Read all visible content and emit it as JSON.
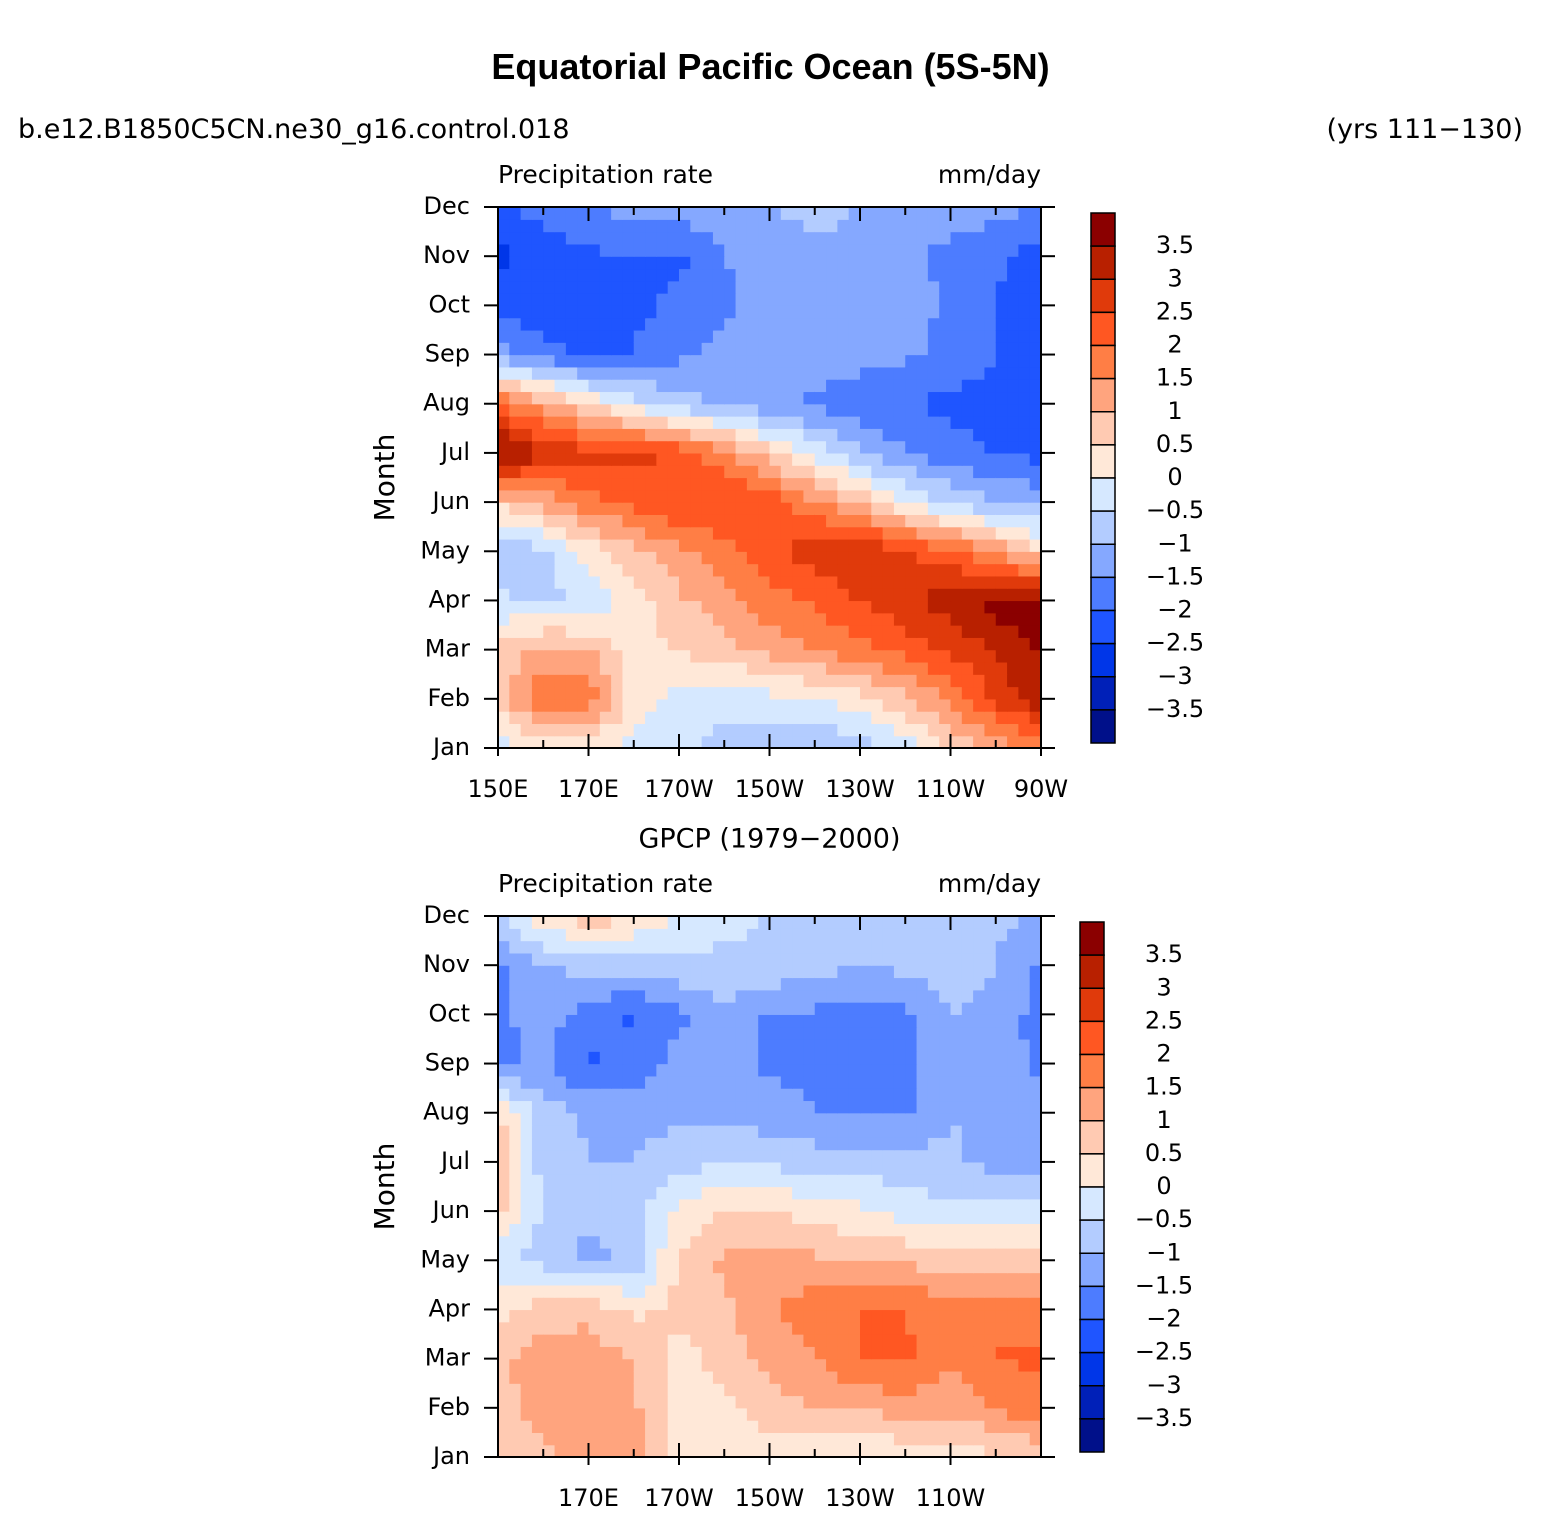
{
  "header": {
    "title": "Equatorial Pacific Ocean (5S-5N)",
    "case_name": "b.e12.B1850C5CN.ne30_g16.control.018",
    "years": "(yrs 111−130)"
  },
  "colorbar": {
    "levels": [
      -3.5,
      -3,
      -2.5,
      -2,
      -1.5,
      -1,
      -0.5,
      0,
      0.5,
      1,
      1.5,
      2,
      2.5,
      3,
      3.5
    ],
    "labels": [
      "3.5",
      "3",
      "2.5",
      "2",
      "1.5",
      "1",
      "0.5",
      "0",
      "−0.5",
      "−1",
      "−1.5",
      "−2",
      "−2.5",
      "−3",
      "−3.5"
    ],
    "colors": [
      "#8b0000",
      "#b82000",
      "#e03a0b",
      "#ff5722",
      "#ff7e45",
      "#ffa47e",
      "#ffcab2",
      "#ffe8d8",
      "#d6e8ff",
      "#b3ccff",
      "#85a8ff",
      "#4d7cff",
      "#1f55ff",
      "#0036e8",
      "#0020b8",
      "#00108a"
    ]
  },
  "chart_data": [
    {
      "type": "heatmap",
      "title": "",
      "left_string": "Precipitation  rate",
      "right_string": "mm/day",
      "ylabel": "Month",
      "xlabel": "",
      "x_ticks": [
        "150E",
        "170E",
        "170W",
        "150W",
        "130W",
        "110W",
        "90W"
      ],
      "x_tick_lons": [
        150,
        170,
        190,
        210,
        230,
        250,
        270
      ],
      "x_range": [
        150,
        270
      ],
      "y_ticks": [
        "Jan",
        "Feb",
        "Mar",
        "Apr",
        "May",
        "Jun",
        "Jul",
        "Aug",
        "Sep",
        "Oct",
        "Nov",
        "Dec"
      ],
      "lons": [
        150,
        160,
        170,
        180,
        190,
        200,
        210,
        220,
        230,
        240,
        250,
        260,
        270
      ],
      "months": [
        "Jan",
        "Feb",
        "Mar",
        "Apr",
        "May",
        "Jun",
        "Jul",
        "Aug",
        "Sep",
        "Oct",
        "Nov",
        "Dec"
      ],
      "values": [
        [
          -0.4,
          0.3,
          0.1,
          -0.2,
          -0.4,
          -0.7,
          -0.8,
          -1.0,
          -0.8,
          -0.3,
          0.5,
          1.2,
          1.8
        ],
        [
          0.8,
          1.9,
          1.8,
          0.3,
          -0.2,
          -0.3,
          -0.2,
          0.0,
          0.3,
          0.9,
          1.6,
          2.6,
          3.3
        ],
        [
          0.6,
          1.2,
          1.0,
          0.3,
          0.5,
          0.8,
          1.2,
          1.5,
          1.8,
          2.2,
          2.6,
          3.1,
          3.6
        ],
        [
          -0.4,
          -0.6,
          -0.4,
          0.2,
          0.9,
          1.3,
          1.8,
          2.1,
          2.5,
          2.9,
          3.3,
          3.7,
          3.9
        ],
        [
          -0.9,
          -0.7,
          0.2,
          0.9,
          1.3,
          1.8,
          2.3,
          2.8,
          3.1,
          2.6,
          2.1,
          1.4,
          0.6
        ],
        [
          0.6,
          1.2,
          1.8,
          2.1,
          2.5,
          2.6,
          2.3,
          1.6,
          0.8,
          0.1,
          -0.6,
          -1.0,
          -1.2
        ],
        [
          3.8,
          3.1,
          2.7,
          2.7,
          2.4,
          1.6,
          0.7,
          -0.2,
          -0.9,
          -1.5,
          -1.8,
          -2.0,
          -2.2
        ],
        [
          2.0,
          1.2,
          0.5,
          -0.3,
          -0.8,
          -1.1,
          -1.4,
          -1.6,
          -1.8,
          -2.0,
          -2.1,
          -2.2,
          -2.4
        ],
        [
          -1.2,
          -1.8,
          -2.1,
          -2.0,
          -1.6,
          -1.3,
          -1.2,
          -1.2,
          -1.3,
          -1.4,
          -1.7,
          -2.0,
          -2.3
        ],
        [
          -2.2,
          -2.4,
          -2.2,
          -2.1,
          -1.9,
          -1.6,
          -1.3,
          -1.2,
          -1.2,
          -1.2,
          -1.6,
          -2.0,
          -2.5
        ],
        [
          -2.6,
          -2.4,
          -2.1,
          -2.0,
          -2.1,
          -1.5,
          -1.3,
          -1.2,
          -1.2,
          -1.3,
          -1.7,
          -1.9,
          -2.3
        ],
        [
          -2.1,
          -1.8,
          -1.5,
          -1.3,
          -1.2,
          -1.1,
          -1.0,
          -0.8,
          -1.0,
          -1.1,
          -1.2,
          -1.3,
          -1.5
        ]
      ]
    },
    {
      "type": "heatmap",
      "title": "GPCP (1979−2000)",
      "left_string": "Precipitation  rate",
      "right_string": "mm/day",
      "ylabel": "Month",
      "xlabel": "",
      "x_ticks": [
        "170E",
        "170W",
        "150W",
        "130W",
        "110W"
      ],
      "x_tick_lons": [
        170,
        190,
        210,
        230,
        250
      ],
      "x_range": [
        150,
        270
      ],
      "y_ticks": [
        "Jan",
        "Feb",
        "Mar",
        "Apr",
        "May",
        "Jun",
        "Jul",
        "Aug",
        "Sep",
        "Oct",
        "Nov",
        "Dec"
      ],
      "lons": [
        150,
        160,
        170,
        180,
        190,
        200,
        210,
        220,
        230,
        240,
        250,
        260,
        270
      ],
      "months": [
        "Jan",
        "Feb",
        "Mar",
        "Apr",
        "May",
        "Jun",
        "Jul",
        "Aug",
        "Sep",
        "Oct",
        "Nov",
        "Dec"
      ],
      "values": [
        [
          0.4,
          0.9,
          1.2,
          1.3,
          0.2,
          0.1,
          0.1,
          0.2,
          0.0,
          0.1,
          0.2,
          0.4,
          0.6
        ],
        [
          0.8,
          1.3,
          1.2,
          1.1,
          0.2,
          0.4,
          0.8,
          1.0,
          1.1,
          1.2,
          1.2,
          1.5,
          1.9
        ],
        [
          0.9,
          1.2,
          1.2,
          1.0,
          0.3,
          0.7,
          1.2,
          1.4,
          2.0,
          2.1,
          1.6,
          2.0,
          2.1
        ],
        [
          0.3,
          0.8,
          0.9,
          0.4,
          0.6,
          0.9,
          1.5,
          1.8,
          2.0,
          2.0,
          1.7,
          2.0,
          1.8
        ],
        [
          -0.4,
          -0.7,
          -1.1,
          -0.9,
          0.6,
          1.1,
          1.2,
          1.1,
          1.0,
          0.9,
          0.8,
          0.7,
          0.6
        ],
        [
          0.7,
          -0.6,
          -1.0,
          -0.6,
          0.1,
          0.5,
          0.5,
          0.3,
          0.1,
          -0.2,
          -0.4,
          -0.3,
          -0.2
        ],
        [
          0.8,
          -0.7,
          -1.0,
          -1.0,
          -0.7,
          -0.5,
          -0.6,
          -0.7,
          -0.7,
          -0.8,
          -0.9,
          -1.2,
          -1.3
        ],
        [
          0.6,
          -0.7,
          -1.1,
          -1.2,
          -1.1,
          -1.2,
          -1.3,
          -1.5,
          -1.6,
          -1.6,
          -1.0,
          -1.2,
          -1.1
        ],
        [
          -1.6,
          -1.4,
          -2.1,
          -1.8,
          -1.3,
          -1.2,
          -1.6,
          -1.6,
          -1.7,
          -1.6,
          -1.1,
          -1.3,
          -1.6
        ],
        [
          -1.6,
          -1.3,
          -1.7,
          -2.1,
          -1.6,
          -1.1,
          -1.6,
          -1.6,
          -1.7,
          -1.6,
          -1.0,
          -1.2,
          -1.7
        ],
        [
          -1.6,
          -1.1,
          -0.8,
          -0.8,
          -0.6,
          -0.6,
          -0.6,
          -0.8,
          -1.0,
          -0.9,
          -0.8,
          -1.0,
          -1.6
        ],
        [
          -0.6,
          0.4,
          0.8,
          0.5,
          -0.1,
          -0.4,
          -0.5,
          -0.5,
          -0.8,
          -0.9,
          -0.8,
          -0.9,
          -1.0
        ]
      ]
    }
  ]
}
